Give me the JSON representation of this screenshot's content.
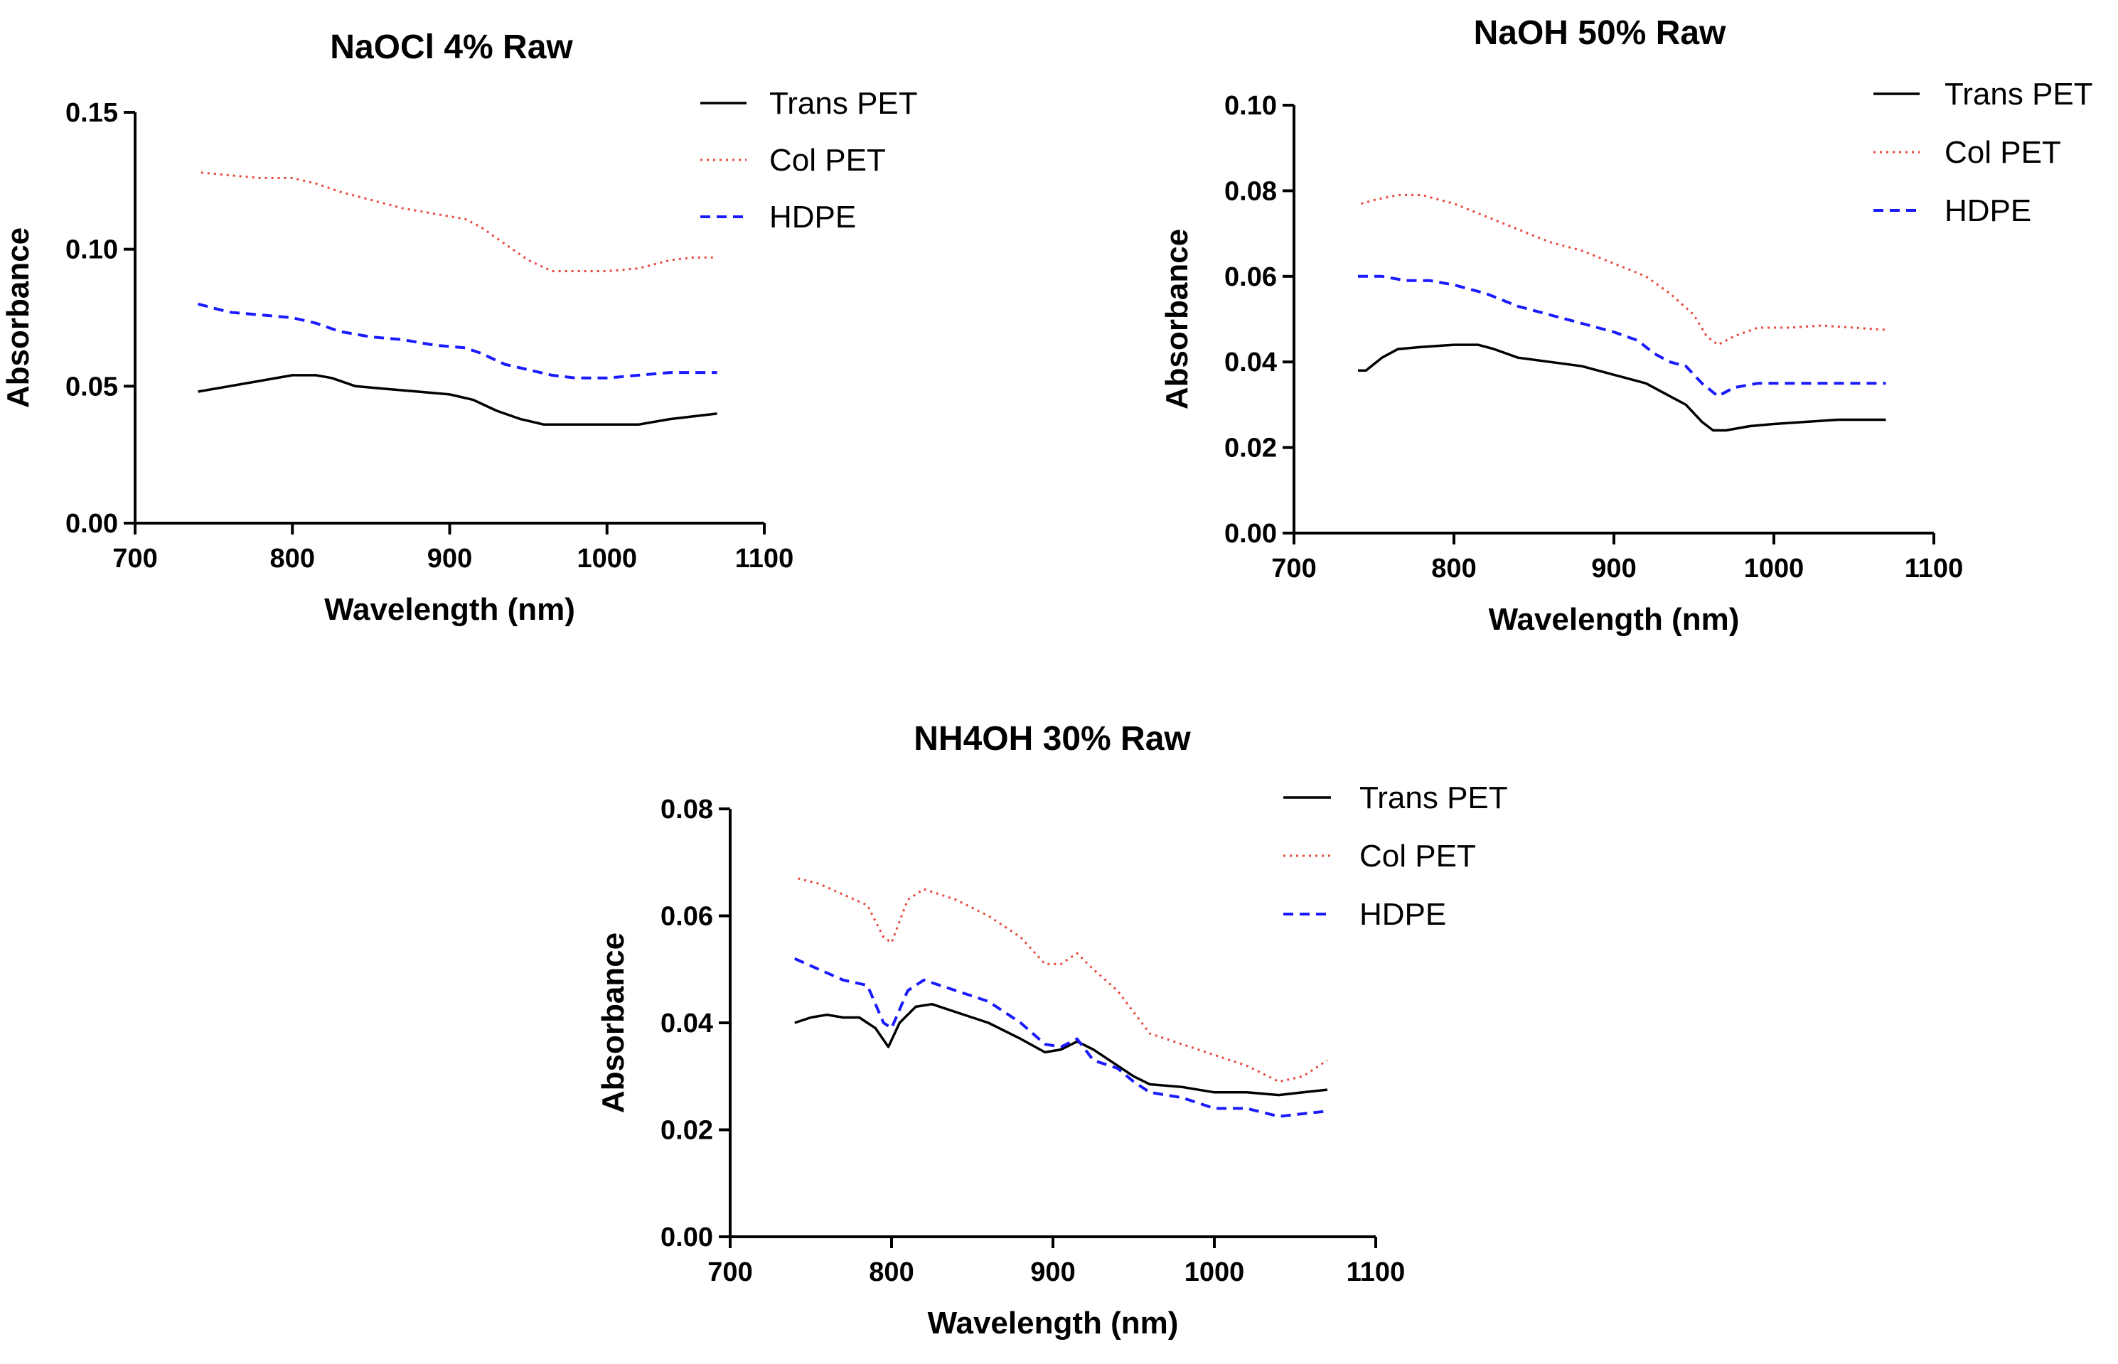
{
  "chart_data": [
    {
      "type": "line",
      "title": "NaOCl 4%  Raw",
      "xlabel": "Wavelength (nm)",
      "ylabel": "Absorbance",
      "xlim": [
        700,
        1100
      ],
      "ylim": [
        0,
        0.15
      ],
      "xticks": [
        700,
        800,
        900,
        1000,
        1100
      ],
      "xtick_labels": [
        "700",
        "800",
        "900",
        "1000",
        "1100"
      ],
      "yticks": [
        0,
        0.05,
        0.1,
        0.15
      ],
      "ytick_labels": [
        "0.00",
        "0.05",
        "0.10",
        "0.15"
      ],
      "legend_position": "top-right",
      "series": [
        {
          "name": "Trans PET",
          "color": "#000000",
          "style": "solid",
          "x": [
            740,
            760,
            780,
            800,
            815,
            825,
            840,
            860,
            880,
            900,
            915,
            930,
            945,
            960,
            980,
            1000,
            1020,
            1040,
            1055,
            1070
          ],
          "y": [
            0.048,
            0.05,
            0.052,
            0.054,
            0.054,
            0.053,
            0.05,
            0.049,
            0.048,
            0.047,
            0.045,
            0.041,
            0.038,
            0.036,
            0.036,
            0.036,
            0.036,
            0.038,
            0.039,
            0.04
          ]
        },
        {
          "name": "Col PET",
          "color": "#e8473c",
          "style": "dotted",
          "x": [
            742,
            760,
            780,
            800,
            815,
            830,
            850,
            870,
            890,
            910,
            920,
            935,
            950,
            965,
            980,
            1000,
            1020,
            1040,
            1055,
            1070
          ],
          "y": [
            0.128,
            0.127,
            0.126,
            0.126,
            0.124,
            0.121,
            0.118,
            0.115,
            0.113,
            0.111,
            0.108,
            0.102,
            0.096,
            0.092,
            0.092,
            0.092,
            0.093,
            0.096,
            0.097,
            0.097
          ]
        },
        {
          "name": "HDPE",
          "color": "#1a1aff",
          "style": "dashed",
          "x": [
            740,
            760,
            780,
            800,
            815,
            830,
            850,
            870,
            890,
            910,
            920,
            935,
            950,
            965,
            980,
            1000,
            1020,
            1040,
            1055,
            1070
          ],
          "y": [
            0.08,
            0.077,
            0.076,
            0.075,
            0.073,
            0.07,
            0.068,
            0.067,
            0.065,
            0.064,
            0.062,
            0.058,
            0.056,
            0.054,
            0.053,
            0.053,
            0.054,
            0.055,
            0.055,
            0.055
          ]
        }
      ]
    },
    {
      "type": "line",
      "title": "NaOH 50% Raw",
      "xlabel": "Wavelength (nm)",
      "ylabel": "Absorbance",
      "xlim": [
        700,
        1100
      ],
      "ylim": [
        0,
        0.1
      ],
      "xticks": [
        700,
        800,
        900,
        1000,
        1100
      ],
      "xtick_labels": [
        "700",
        "800",
        "900",
        "1000",
        "1100"
      ],
      "yticks": [
        0,
        0.02,
        0.04,
        0.06,
        0.08,
        0.1
      ],
      "ytick_labels": [
        "0.00",
        "0.02",
        "0.04",
        "0.06",
        "0.08",
        "0.10"
      ],
      "legend_position": "top-right",
      "series": [
        {
          "name": "Trans PET",
          "color": "#000000",
          "style": "solid",
          "x": [
            740,
            745,
            755,
            765,
            780,
            800,
            815,
            825,
            840,
            860,
            880,
            900,
            920,
            935,
            945,
            955,
            962,
            970,
            985,
            1000,
            1020,
            1040,
            1055,
            1070
          ],
          "y": [
            0.038,
            0.038,
            0.041,
            0.043,
            0.0435,
            0.044,
            0.044,
            0.043,
            0.041,
            0.04,
            0.039,
            0.037,
            0.035,
            0.032,
            0.03,
            0.026,
            0.024,
            0.024,
            0.025,
            0.0255,
            0.026,
            0.0265,
            0.0265,
            0.0265
          ]
        },
        {
          "name": "Col PET",
          "color": "#e8473c",
          "style": "dotted",
          "x": [
            742,
            752,
            765,
            780,
            800,
            820,
            840,
            860,
            880,
            900,
            920,
            935,
            950,
            958,
            965,
            975,
            990,
            1010,
            1030,
            1050,
            1070
          ],
          "y": [
            0.077,
            0.078,
            0.079,
            0.079,
            0.077,
            0.074,
            0.071,
            0.068,
            0.066,
            0.063,
            0.06,
            0.056,
            0.051,
            0.046,
            0.044,
            0.046,
            0.048,
            0.048,
            0.0485,
            0.048,
            0.0475
          ]
        },
        {
          "name": "HDPE",
          "color": "#1a1aff",
          "style": "dashed",
          "x": [
            740,
            755,
            770,
            785,
            800,
            820,
            840,
            860,
            880,
            900,
            915,
            925,
            935,
            945,
            955,
            965,
            975,
            990,
            1010,
            1030,
            1050,
            1070
          ],
          "y": [
            0.06,
            0.06,
            0.059,
            0.059,
            0.058,
            0.056,
            0.053,
            0.051,
            0.049,
            0.047,
            0.045,
            0.042,
            0.04,
            0.039,
            0.035,
            0.032,
            0.034,
            0.035,
            0.035,
            0.035,
            0.035,
            0.035
          ]
        }
      ]
    },
    {
      "type": "line",
      "title": "NH4OH 30% Raw",
      "xlabel": "Wavelength (nm)",
      "ylabel": "Absorbance",
      "xlim": [
        700,
        1100
      ],
      "ylim": [
        0,
        0.08
      ],
      "xticks": [
        700,
        800,
        900,
        1000,
        1100
      ],
      "xtick_labels": [
        "700",
        "800",
        "900",
        "1000",
        "1100"
      ],
      "yticks": [
        0,
        0.02,
        0.04,
        0.06,
        0.08
      ],
      "ytick_labels": [
        "0.00",
        "0.02",
        "0.04",
        "0.06",
        "0.08"
      ],
      "legend_position": "top-right",
      "series": [
        {
          "name": "Trans PET",
          "color": "#000000",
          "style": "solid",
          "x": [
            740,
            750,
            760,
            770,
            780,
            790,
            798,
            805,
            815,
            825,
            840,
            860,
            880,
            895,
            905,
            915,
            925,
            940,
            950,
            960,
            980,
            1000,
            1020,
            1040,
            1055,
            1070
          ],
          "y": [
            0.04,
            0.041,
            0.0415,
            0.041,
            0.041,
            0.039,
            0.0355,
            0.04,
            0.043,
            0.0435,
            0.042,
            0.04,
            0.037,
            0.0345,
            0.035,
            0.0365,
            0.035,
            0.032,
            0.03,
            0.0285,
            0.028,
            0.027,
            0.027,
            0.0265,
            0.027,
            0.0275
          ]
        },
        {
          "name": "Col PET",
          "color": "#e8473c",
          "style": "dotted",
          "x": [
            742,
            755,
            770,
            785,
            795,
            800,
            810,
            820,
            840,
            860,
            880,
            895,
            905,
            915,
            925,
            940,
            950,
            960,
            980,
            1000,
            1020,
            1040,
            1055,
            1070
          ],
          "y": [
            0.067,
            0.066,
            0.064,
            0.062,
            0.056,
            0.055,
            0.063,
            0.065,
            0.063,
            0.06,
            0.056,
            0.051,
            0.051,
            0.053,
            0.05,
            0.046,
            0.042,
            0.038,
            0.036,
            0.034,
            0.032,
            0.029,
            0.03,
            0.033
          ]
        },
        {
          "name": "HDPE",
          "color": "#1a1aff",
          "style": "dashed",
          "x": [
            740,
            755,
            770,
            785,
            795,
            800,
            810,
            820,
            840,
            860,
            880,
            895,
            905,
            915,
            925,
            940,
            950,
            960,
            980,
            1000,
            1020,
            1040,
            1055,
            1070
          ],
          "y": [
            0.052,
            0.05,
            0.048,
            0.047,
            0.04,
            0.039,
            0.046,
            0.048,
            0.046,
            0.044,
            0.04,
            0.036,
            0.0355,
            0.037,
            0.033,
            0.0315,
            0.029,
            0.027,
            0.026,
            0.024,
            0.024,
            0.0225,
            0.023,
            0.0235
          ]
        }
      ]
    }
  ]
}
